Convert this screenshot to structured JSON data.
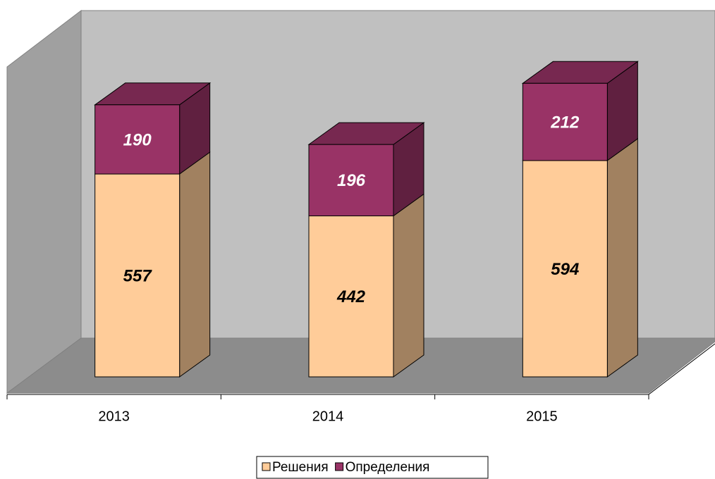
{
  "chart_data": {
    "type": "bar",
    "stacked": true,
    "categories": [
      "2013",
      "2014",
      "2015"
    ],
    "series": [
      {
        "name": "Решения",
        "color": "#FFCC99",
        "values": [
          557,
          442,
          594
        ]
      },
      {
        "name": "Определения",
        "color": "#993366",
        "values": [
          190,
          196,
          212
        ]
      }
    ],
    "legend": "bottom"
  }
}
